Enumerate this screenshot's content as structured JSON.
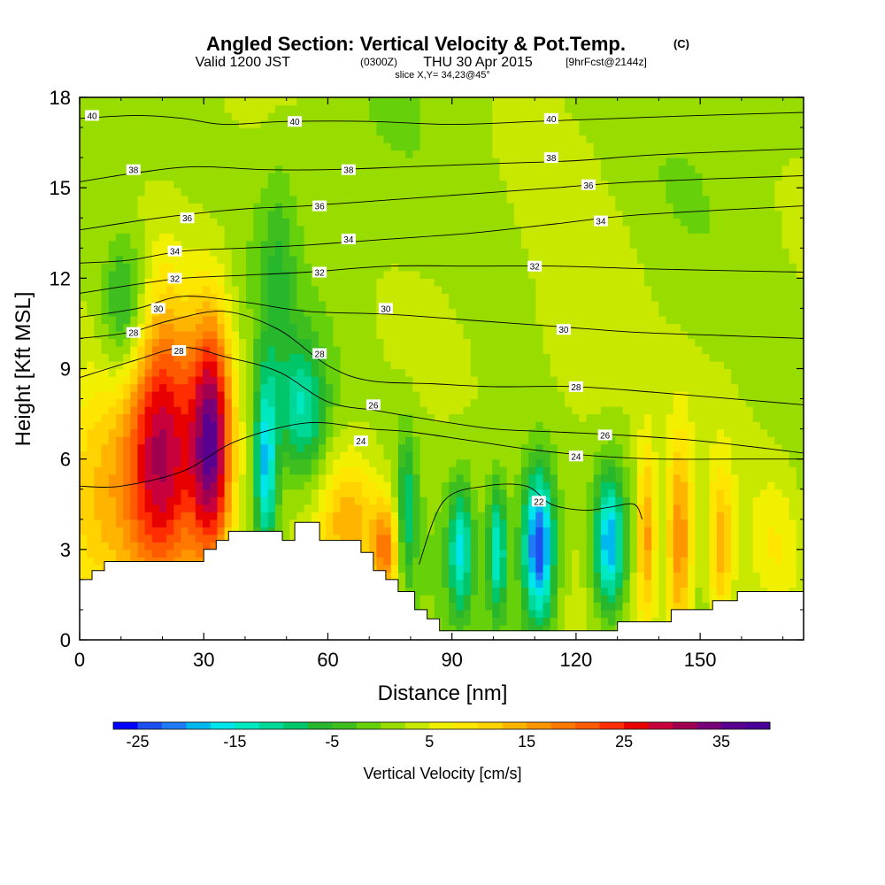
{
  "title": {
    "main": "Angled Section: Vertical Velocity & Pot.Temp.",
    "main_unit": "(C)",
    "valid_prefix": "Valid 1200 JST",
    "valid_zulu": "(0300Z)",
    "valid_date": "THU 30 Apr 2015",
    "forecast": "[9hrFcst@2144z]",
    "slice": "slice X,Y= 34,23@45°"
  },
  "chart_data": {
    "type": "heatmap",
    "xlabel": "Distance [nm]",
    "ylabel": "Height [Kft MSL]",
    "xlim": [
      0,
      175
    ],
    "ylim": [
      0,
      18
    ],
    "xticks": [
      0,
      30,
      60,
      90,
      120,
      150
    ],
    "yticks": [
      0,
      3,
      6,
      9,
      12,
      15,
      18
    ],
    "colorbar": {
      "title": "Vertical Velocity [cm/s]",
      "min": -27.5,
      "max": 40,
      "step": 2.5,
      "tick_values": [
        -25,
        -15,
        -5,
        5,
        15,
        25,
        35
      ],
      "colors": [
        "#0000ff",
        "#1d4ff0",
        "#1f7bf5",
        "#00b8f0",
        "#00e4ec",
        "#00e8c0",
        "#00d897",
        "#00c66a",
        "#27b72d",
        "#3fbf1f",
        "#66d10a",
        "#98dc00",
        "#c8e800",
        "#f0f000",
        "#ffe600",
        "#ffd200",
        "#ffb400",
        "#ff9600",
        "#ff7800",
        "#ff5a00",
        "#ff2d00",
        "#e80000",
        "#c8003c",
        "#a00050",
        "#780078",
        "#5a0091",
        "#480096"
      ]
    },
    "terrain_kft": [
      [
        0,
        2
      ],
      [
        3,
        2
      ],
      [
        3,
        2.3
      ],
      [
        6,
        2.3
      ],
      [
        6,
        2.6
      ],
      [
        30,
        2.6
      ],
      [
        30,
        3
      ],
      [
        33,
        3
      ],
      [
        33,
        3.3
      ],
      [
        36,
        3.3
      ],
      [
        36,
        3.6
      ],
      [
        49,
        3.6
      ],
      [
        49,
        3.3
      ],
      [
        52,
        3.3
      ],
      [
        52,
        3.9
      ],
      [
        58,
        3.9
      ],
      [
        58,
        3.3
      ],
      [
        68,
        3.3
      ],
      [
        68,
        2.9
      ],
      [
        71,
        2.9
      ],
      [
        71,
        2.3
      ],
      [
        74,
        2.3
      ],
      [
        74,
        2
      ],
      [
        77,
        2
      ],
      [
        77,
        1.6
      ],
      [
        81,
        1.6
      ],
      [
        81,
        1
      ],
      [
        84,
        1
      ],
      [
        84,
        0.7
      ],
      [
        87,
        0.7
      ],
      [
        87,
        0.3
      ],
      [
        130,
        0.3
      ],
      [
        130,
        0.6
      ],
      [
        143,
        0.6
      ],
      [
        143,
        1
      ],
      [
        153,
        1
      ],
      [
        153,
        1.3
      ],
      [
        159,
        1.3
      ],
      [
        159,
        1.6
      ],
      [
        175,
        1.6
      ]
    ],
    "isotherms": [
      {
        "label": "22",
        "points": [
          [
            82,
            2.5
          ],
          [
            88,
            4.6
          ],
          [
            98,
            5.1
          ],
          [
            108,
            5.1
          ],
          [
            114,
            4.5
          ],
          [
            122,
            4.3
          ],
          [
            128,
            4.4
          ],
          [
            134,
            4.5
          ],
          [
            136,
            4.0
          ]
        ]
      },
      {
        "label": "24",
        "points": [
          [
            0,
            5.1
          ],
          [
            10,
            5.1
          ],
          [
            25,
            5.6
          ],
          [
            38,
            6.6
          ],
          [
            55,
            7.2
          ],
          [
            70,
            7.0
          ],
          [
            80,
            6.9
          ],
          [
            95,
            6.6
          ],
          [
            110,
            6.3
          ],
          [
            125,
            6.1
          ],
          [
            140,
            6.0
          ],
          [
            160,
            6.0
          ],
          [
            175,
            6.0
          ]
        ]
      },
      {
        "label": "26",
        "points": [
          [
            0,
            8.7
          ],
          [
            14,
            9.3
          ],
          [
            25,
            9.7
          ],
          [
            35,
            9.4
          ],
          [
            48,
            8.9
          ],
          [
            60,
            7.9
          ],
          [
            72,
            7.6
          ],
          [
            85,
            7.3
          ],
          [
            100,
            7.0
          ],
          [
            115,
            6.9
          ],
          [
            130,
            6.8
          ],
          [
            150,
            6.6
          ],
          [
            175,
            6.2
          ]
        ]
      },
      {
        "label": "28",
        "points": [
          [
            0,
            10.0
          ],
          [
            12,
            10.2
          ],
          [
            22,
            10.6
          ],
          [
            35,
            10.9
          ],
          [
            48,
            10.3
          ],
          [
            60,
            9.1
          ],
          [
            70,
            8.6
          ],
          [
            85,
            8.5
          ],
          [
            100,
            8.4
          ],
          [
            120,
            8.4
          ],
          [
            140,
            8.2
          ],
          [
            175,
            7.8
          ]
        ]
      },
      {
        "label": "30",
        "points": [
          [
            0,
            10.7
          ],
          [
            14,
            11.0
          ],
          [
            25,
            11.4
          ],
          [
            40,
            11.2
          ],
          [
            55,
            10.9
          ],
          [
            75,
            10.8
          ],
          [
            95,
            10.6
          ],
          [
            115,
            10.4
          ],
          [
            135,
            10.2
          ],
          [
            155,
            10.1
          ],
          [
            175,
            10.0
          ]
        ]
      },
      {
        "label": "32",
        "points": [
          [
            0,
            11.5
          ],
          [
            14,
            11.8
          ],
          [
            25,
            12.0
          ],
          [
            40,
            12.1
          ],
          [
            55,
            12.2
          ],
          [
            75,
            12.4
          ],
          [
            95,
            12.4
          ],
          [
            115,
            12.4
          ],
          [
            140,
            12.3
          ],
          [
            175,
            12.2
          ]
        ]
      },
      {
        "label": "34",
        "points": [
          [
            0,
            12.5
          ],
          [
            12,
            12.6
          ],
          [
            25,
            12.9
          ],
          [
            40,
            13.0
          ],
          [
            55,
            13.1
          ],
          [
            75,
            13.3
          ],
          [
            95,
            13.5
          ],
          [
            115,
            13.8
          ],
          [
            135,
            14.1
          ],
          [
            175,
            14.4
          ]
        ]
      },
      {
        "label": "36",
        "points": [
          [
            0,
            13.6
          ],
          [
            14,
            13.9
          ],
          [
            25,
            14.1
          ],
          [
            40,
            14.3
          ],
          [
            55,
            14.4
          ],
          [
            75,
            14.6
          ],
          [
            95,
            14.8
          ],
          [
            115,
            15.0
          ],
          [
            135,
            15.2
          ],
          [
            175,
            15.4
          ]
        ]
      },
      {
        "label": "38",
        "points": [
          [
            0,
            15.2
          ],
          [
            14,
            15.5
          ],
          [
            28,
            15.7
          ],
          [
            45,
            15.6
          ],
          [
            60,
            15.6
          ],
          [
            80,
            15.7
          ],
          [
            100,
            15.8
          ],
          [
            120,
            15.9
          ],
          [
            140,
            16.1
          ],
          [
            175,
            16.3
          ]
        ]
      },
      {
        "label": "40",
        "points": [
          [
            0,
            17.3
          ],
          [
            14,
            17.4
          ],
          [
            25,
            17.3
          ],
          [
            35,
            17.1
          ],
          [
            50,
            17.2
          ],
          [
            70,
            17.2
          ],
          [
            90,
            17.1
          ],
          [
            110,
            17.2
          ],
          [
            130,
            17.3
          ],
          [
            150,
            17.4
          ],
          [
            175,
            17.5
          ]
        ]
      }
    ],
    "isotherm_labels": [
      {
        "text": "40",
        "x": 3,
        "y": 17.4
      },
      {
        "text": "40",
        "x": 52,
        "y": 17.2
      },
      {
        "text": "40",
        "x": 114,
        "y": 17.3
      },
      {
        "text": "38",
        "x": 13,
        "y": 15.6
      },
      {
        "text": "38",
        "x": 65,
        "y": 15.6
      },
      {
        "text": "38",
        "x": 114,
        "y": 16.0
      },
      {
        "text": "36",
        "x": 26,
        "y": 14.0
      },
      {
        "text": "36",
        "x": 58,
        "y": 14.4
      },
      {
        "text": "36",
        "x": 123,
        "y": 15.1
      },
      {
        "text": "34",
        "x": 23,
        "y": 12.9
      },
      {
        "text": "34",
        "x": 65,
        "y": 13.3
      },
      {
        "text": "34",
        "x": 126,
        "y": 13.9
      },
      {
        "text": "32",
        "x": 23,
        "y": 12.0
      },
      {
        "text": "32",
        "x": 58,
        "y": 12.2
      },
      {
        "text": "32",
        "x": 110,
        "y": 12.4
      },
      {
        "text": "30",
        "x": 19,
        "y": 11.0
      },
      {
        "text": "30",
        "x": 74,
        "y": 11.0
      },
      {
        "text": "30",
        "x": 117,
        "y": 10.3
      },
      {
        "text": "28",
        "x": 13,
        "y": 10.2
      },
      {
        "text": "28",
        "x": 24,
        "y": 9.6
      },
      {
        "text": "28",
        "x": 58,
        "y": 9.5
      },
      {
        "text": "28",
        "x": 120,
        "y": 8.4
      },
      {
        "text": "26",
        "x": 71,
        "y": 7.8
      },
      {
        "text": "26",
        "x": 127,
        "y": 6.8
      },
      {
        "text": "24",
        "x": 68,
        "y": 6.6
      },
      {
        "text": "24",
        "x": 120,
        "y": 6.1
      },
      {
        "text": "22",
        "x": 111,
        "y": 4.6
      }
    ],
    "velocity_features": [
      {
        "x": 20,
        "y": 6.0,
        "sx": 6.5,
        "sy": 3.4,
        "v": 30
      },
      {
        "x": 32,
        "y": 6.5,
        "sx": 3.5,
        "sy": 3.0,
        "v": 30
      },
      {
        "x": 5,
        "y": 5.0,
        "sx": 7.0,
        "sy": 3.2,
        "v": 10
      },
      {
        "x": 45,
        "y": 5.8,
        "sx": 2.0,
        "sy": 2.2,
        "v": -20
      },
      {
        "x": 54,
        "y": 7.6,
        "sx": 4.0,
        "sy": 1.6,
        "v": -14
      },
      {
        "x": 65,
        "y": 4.0,
        "sx": 5.0,
        "sy": 1.6,
        "v": 12
      },
      {
        "x": 74,
        "y": 3.0,
        "sx": 2.5,
        "sy": 1.2,
        "v": 16
      },
      {
        "x": 79,
        "y": 4.3,
        "sx": 1.7,
        "sy": 1.8,
        "v": -12
      },
      {
        "x": 92,
        "y": 3.0,
        "sx": 2.0,
        "sy": 1.5,
        "v": -16
      },
      {
        "x": 101,
        "y": 3.0,
        "sx": 1.6,
        "sy": 1.5,
        "v": -16
      },
      {
        "x": 111,
        "y": 3.1,
        "sx": 2.7,
        "sy": 1.8,
        "v": -27
      },
      {
        "x": 128,
        "y": 3.2,
        "sx": 2.6,
        "sy": 1.6,
        "v": -22
      },
      {
        "x": 137,
        "y": 3.4,
        "sx": 1.6,
        "sy": 2.2,
        "v": 14
      },
      {
        "x": 145,
        "y": 3.2,
        "sx": 2.2,
        "sy": 2.5,
        "v": 16
      },
      {
        "x": 155,
        "y": 3.0,
        "sx": 2.2,
        "sy": 2.0,
        "v": 12
      },
      {
        "x": 168,
        "y": 3.0,
        "sx": 5.0,
        "sy": 1.8,
        "v": 6
      },
      {
        "x": 11,
        "y": 11.0,
        "sx": 4.0,
        "sy": 1.8,
        "v": -12
      },
      {
        "x": 48,
        "y": 12.0,
        "sx": 3.0,
        "sy": 2.5,
        "v": -6
      },
      {
        "x": 122,
        "y": 10.0,
        "sx": 10.0,
        "sy": 3.0,
        "v": 4
      }
    ]
  }
}
